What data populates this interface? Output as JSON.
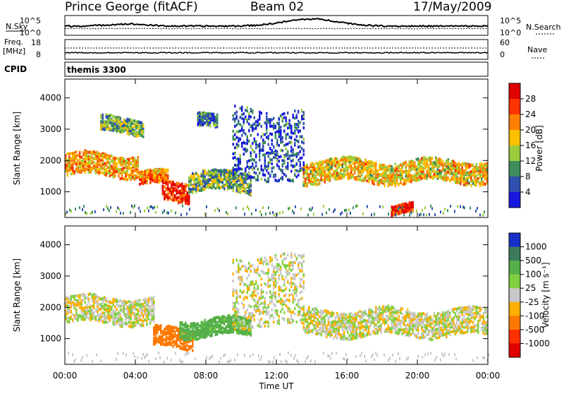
{
  "header": {
    "station": "Prince George (fitACF)",
    "beam": "Beam 02",
    "date": "17/May/2009"
  },
  "labels": {
    "nsky": "N.Sky",
    "nsearch": "N.Search",
    "freq_line1": "Freq.",
    "freq_line2": "[MHz]",
    "nave": "Nave",
    "cpid": "CPID",
    "cpid_value": "themis 3300",
    "x_axis": "Time UT",
    "y_axis_top": "Slant Range [km]",
    "y_axis_bottom": "Slant Range [km]",
    "power_bar_label": "Power [dB]",
    "velocity_bar_label": "Velocity [m s⁻¹]"
  },
  "noise_axis": {
    "left_ticks": [
      "10^5",
      "10^0"
    ],
    "right_ticks": [
      "10^5",
      "10^0"
    ]
  },
  "freq_axis": {
    "left_ticks": [
      "18",
      "8"
    ],
    "right_ticks": [
      "60",
      "0"
    ]
  },
  "chart_data": [
    {
      "type": "heatmap",
      "title": "Power",
      "xlabel": "Time UT",
      "ylabel": "Slant Range [km]",
      "xlim": [
        "00:00",
        "24:00"
      ],
      "ylim": [
        180,
        4600
      ],
      "x_ticks": [
        "00:00",
        "04:00",
        "08:00",
        "12:00",
        "16:00",
        "20:00",
        "00:00"
      ],
      "y_ticks": [
        1000,
        2000,
        3000,
        4000
      ],
      "colorbar": {
        "label": "Power [dB]",
        "ticks": [
          "28",
          "24",
          "20",
          "16",
          "12",
          "8",
          "4"
        ],
        "colors": [
          "#e00000",
          "#ff3300",
          "#ff8000",
          "#ffc000",
          "#9ccc3c",
          "#3c8c5c",
          "#3050b0",
          "#1818e0"
        ]
      },
      "regions": [
        {
          "t0": 0.0,
          "t1": 4.2,
          "r_center": 1850,
          "r_width": 500,
          "value_db": 20
        },
        {
          "t0": 4.2,
          "t1": 5.8,
          "r_center": 1400,
          "r_width": 300,
          "value_db": 22
        },
        {
          "t0": 5.5,
          "t1": 7.0,
          "r_center": 1050,
          "r_width": 450,
          "value_db": 28
        },
        {
          "t0": 7.0,
          "t1": 10.5,
          "r_center": 1300,
          "r_width": 450,
          "value_db": 12
        },
        {
          "t0": 7.5,
          "t1": 8.6,
          "r_center": 3200,
          "r_width": 300,
          "value_db": 8
        },
        {
          "t0": 2.0,
          "t1": 4.5,
          "r_center": 3100,
          "r_width": 350,
          "value_db": 12
        },
        {
          "t0": 13.5,
          "t1": 24.0,
          "r_center": 1650,
          "r_width": 500,
          "value_db": 18
        },
        {
          "t0": 18.5,
          "t1": 19.8,
          "r_center": 420,
          "r_width": 200,
          "value_db": 28
        },
        {
          "t0": 9.5,
          "t1": 13.5,
          "r_center": 2500,
          "r_width": 1600,
          "value_db": 6
        }
      ]
    },
    {
      "type": "heatmap",
      "title": "Velocity",
      "xlabel": "Time UT",
      "ylabel": "Slant Range [km]",
      "xlim": [
        "00:00",
        "24:00"
      ],
      "ylim": [
        180,
        4600
      ],
      "x_ticks": [
        "00:00",
        "04:00",
        "08:00",
        "12:00",
        "16:00",
        "20:00",
        "00:00"
      ],
      "y_ticks": [
        1000,
        2000,
        3000,
        4000
      ],
      "colorbar": {
        "label": "Velocity [m s⁻¹]",
        "ticks": [
          "1000",
          "500",
          "100",
          "25",
          "-25",
          "-100",
          "-500",
          "-1000"
        ],
        "colors": [
          "#1830c8",
          "#3c7c5c",
          "#56b04a",
          "#80d040",
          "#c8c8c8",
          "#ffb000",
          "#ff7800",
          "#ff3000",
          "#e00000"
        ]
      },
      "regions": [
        {
          "t0": 0.0,
          "t1": 5.0,
          "r_center": 1900,
          "r_width": 600,
          "value_ms": 0
        },
        {
          "t0": 5.0,
          "t1": 7.2,
          "r_center": 1000,
          "r_width": 450,
          "value_ms": -200
        },
        {
          "t0": 6.5,
          "t1": 10.5,
          "r_center": 1350,
          "r_width": 400,
          "value_ms": 150
        },
        {
          "t0": 13.5,
          "t1": 24.0,
          "r_center": 1500,
          "r_width": 600,
          "value_ms": 0
        },
        {
          "t0": 9.5,
          "t1": 13.5,
          "r_center": 2500,
          "r_width": 1600,
          "value_ms": 0
        }
      ]
    }
  ]
}
